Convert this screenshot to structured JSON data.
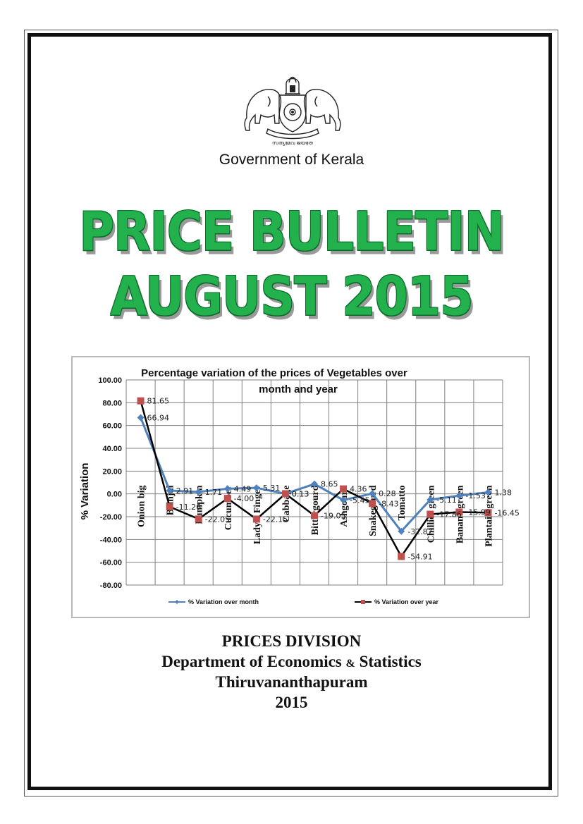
{
  "header": {
    "emblem_text": "സത്യമേവ ജയതേ",
    "government": "Government of Kerala"
  },
  "title": {
    "line1": "PRICE BULLETIN",
    "line2": "AUGUST 2015"
  },
  "colors": {
    "title_green": "#22b14c",
    "series_month": "#4f81bd",
    "series_year_line": "#000000",
    "series_year_marker": "#c0504d"
  },
  "chart_data": {
    "type": "line",
    "title": "Percentage variation of the prices of Vegetables over month and year",
    "ylabel": "% Variation",
    "xlabel": "",
    "ylim": [
      -80,
      100
    ],
    "yticks": [
      "100.00",
      "80.00",
      "60.00",
      "40.00",
      "20.00",
      "0.00",
      "-20.00",
      "-40.00",
      "-60.00",
      "-80.00"
    ],
    "grid": true,
    "legend_position": "bottom",
    "categories": [
      "Onion big",
      "Brinjal",
      "Pumpkin",
      "Cucumber",
      "Lady's Finger",
      "Cabbage",
      "Bittergourd",
      "Ashgourd",
      "Snakegourd",
      "Tomatto",
      "Chillies green",
      "Banana green",
      "Plantain green"
    ],
    "series": [
      {
        "name": "% Variation over month",
        "values": [
          66.94,
          2.91,
          1.71,
          4.49,
          5.31,
          0.13,
          8.65,
          -5.45,
          0.28,
          -32.87,
          -5.11,
          -1.53,
          1.38
        ],
        "labels": [
          "66.94",
          "2.91",
          "1.71",
          "4.49",
          "5.31",
          "0.13",
          "8.65",
          "-5.45",
          "0.28",
          "-32.87",
          "-5.11",
          "-1.53",
          "1.38"
        ]
      },
      {
        "name": "% Variation over year",
        "values": [
          81.65,
          -11.26,
          -22.05,
          -4.0,
          -22.15,
          0.13,
          -19.05,
          4.36,
          -8.43,
          -54.91,
          -17.86,
          -15.99,
          -16.45
        ],
        "labels": [
          "81.65",
          "-11.26",
          "-22.05",
          "-4.00",
          "-22.15",
          "0.13",
          "-19.05",
          "4.36",
          "-8.43",
          "-54.91",
          "-17.86",
          "-15.99",
          "-16.45"
        ]
      }
    ]
  },
  "footer": {
    "division": "PRICES DIVISION",
    "dept_a": "Department of Economics",
    "dept_amp": "&",
    "dept_b": "Statistics",
    "city": "Thiruvananthapuram",
    "year": "2015"
  }
}
